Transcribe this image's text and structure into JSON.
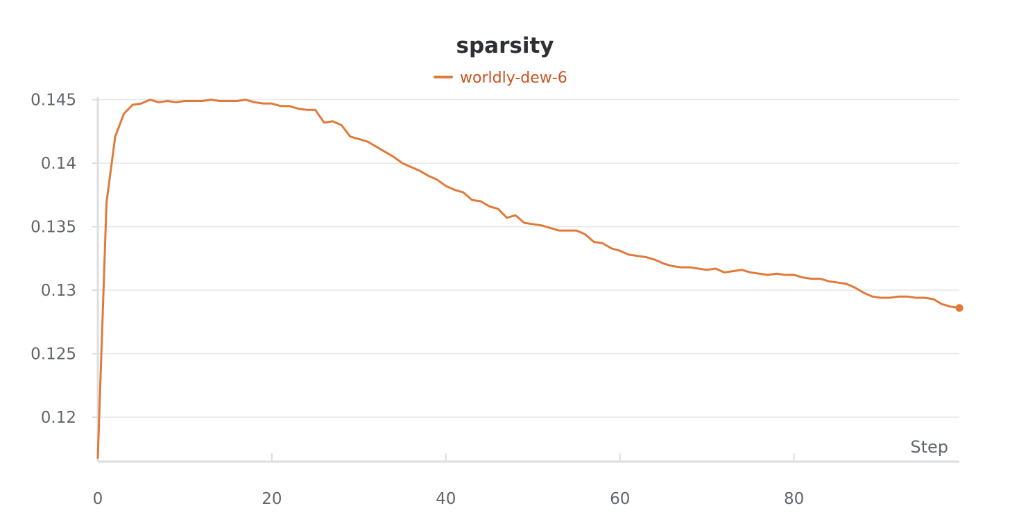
{
  "chart_data": {
    "type": "line",
    "title": "sparsity",
    "xlabel": "Step",
    "ylabel": "",
    "xlim": [
      0,
      99
    ],
    "ylim": [
      0.1165,
      0.1452
    ],
    "x_ticks": [
      0,
      20,
      40,
      60,
      80
    ],
    "x_tick_labels": [
      "0",
      "20",
      "40",
      "60",
      "80"
    ],
    "y_ticks": [
      0.12,
      0.125,
      0.13,
      0.135,
      0.14,
      0.145
    ],
    "y_tick_labels": [
      "0.12",
      "0.125",
      "0.13",
      "0.135",
      "0.14",
      "0.145"
    ],
    "grid": true,
    "legend_position": "top-center",
    "series": [
      {
        "name": "worldly-dew-6",
        "color": "#e07a3a",
        "x": [
          0,
          1,
          2,
          3,
          4,
          5,
          6,
          7,
          8,
          9,
          10,
          11,
          12,
          13,
          14,
          15,
          16,
          17,
          18,
          19,
          20,
          21,
          22,
          23,
          24,
          25,
          26,
          27,
          28,
          29,
          30,
          31,
          32,
          33,
          34,
          35,
          36,
          37,
          38,
          39,
          40,
          41,
          42,
          43,
          44,
          45,
          46,
          47,
          48,
          49,
          50,
          51,
          52,
          53,
          54,
          55,
          56,
          57,
          58,
          59,
          60,
          61,
          62,
          63,
          64,
          65,
          66,
          67,
          68,
          69,
          70,
          71,
          72,
          73,
          74,
          75,
          76,
          77,
          78,
          79,
          80,
          81,
          82,
          83,
          84,
          85,
          86,
          87,
          88,
          89,
          90,
          91,
          92,
          93,
          94,
          95,
          96,
          97,
          98,
          99
        ],
        "values": [
          0.1168,
          0.1369,
          0.1421,
          0.1439,
          0.1446,
          0.1447,
          0.145,
          0.1448,
          0.1449,
          0.1448,
          0.1449,
          0.1449,
          0.1449,
          0.145,
          0.1449,
          0.1449,
          0.1449,
          0.145,
          0.1448,
          0.1447,
          0.1447,
          0.1445,
          0.1445,
          0.1443,
          0.1442,
          0.1442,
          0.1432,
          0.1433,
          0.143,
          0.1421,
          0.1419,
          0.1417,
          0.1413,
          0.1409,
          0.1405,
          0.14,
          0.1397,
          0.1394,
          0.139,
          0.1387,
          0.1382,
          0.1379,
          0.1377,
          0.1371,
          0.137,
          0.1366,
          0.1364,
          0.1357,
          0.1359,
          0.1353,
          0.1352,
          0.1351,
          0.1349,
          0.1347,
          0.1347,
          0.1347,
          0.1344,
          0.1338,
          0.1337,
          0.1333,
          0.1331,
          0.1328,
          0.1327,
          0.1326,
          0.1324,
          0.1321,
          0.1319,
          0.1318,
          0.1318,
          0.1317,
          0.1316,
          0.1317,
          0.1314,
          0.1315,
          0.1316,
          0.1314,
          0.1313,
          0.1312,
          0.1313,
          0.1312,
          0.1312,
          0.131,
          0.1309,
          0.1309,
          0.1307,
          0.1306,
          0.1305,
          0.1302,
          0.1298,
          0.1295,
          0.1294,
          0.1294,
          0.1295,
          0.1295,
          0.1294,
          0.1294,
          0.1293,
          0.1289,
          0.1287,
          0.1286
        ]
      }
    ]
  }
}
